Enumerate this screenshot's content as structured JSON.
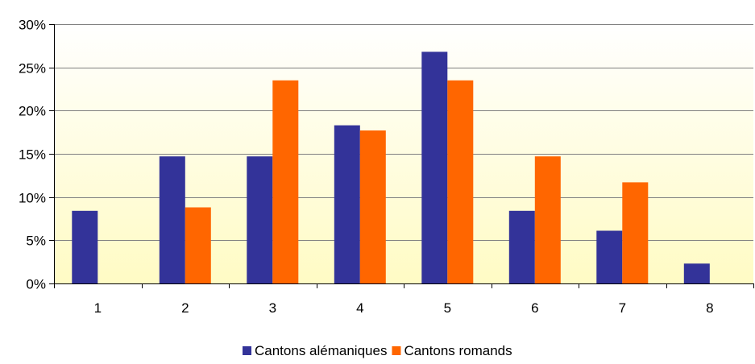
{
  "chart_data": {
    "type": "bar",
    "categories": [
      "1",
      "2",
      "3",
      "4",
      "5",
      "6",
      "7",
      "8"
    ],
    "series": [
      {
        "name": "Cantons alémaniques",
        "color": "#333399",
        "values": [
          8.4,
          14.7,
          14.7,
          18.3,
          26.8,
          8.4,
          6.1,
          2.3
        ]
      },
      {
        "name": "Cantons romands",
        "color": "#FF6600",
        "values": [
          0,
          8.8,
          23.5,
          17.7,
          23.5,
          14.7,
          11.7,
          0
        ]
      }
    ],
    "ylim": [
      0,
      30
    ],
    "yticks": [
      "0%",
      "5%",
      "10%",
      "15%",
      "20%",
      "25%",
      "30%"
    ],
    "ytick_values": [
      0,
      5,
      10,
      15,
      20,
      25,
      30
    ],
    "grid": true,
    "legend_position": "bottom",
    "plot_background": "gradient white to light yellow"
  }
}
